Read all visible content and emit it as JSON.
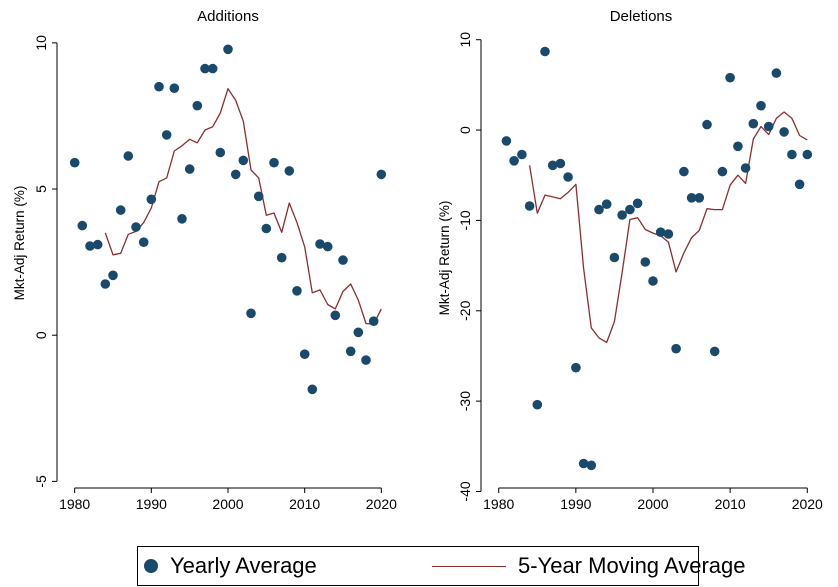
{
  "colors": {
    "dot": "#1a4a6b",
    "line": "#8B2E2E",
    "axis": "#000000"
  },
  "legend": {
    "dot_label": "Yearly Average",
    "line_label": "5-Year Moving Average"
  },
  "chart_data": [
    {
      "type": "scatter",
      "title": "Additions",
      "xlabel": "",
      "ylabel": "Mkt-Adj Return (%)",
      "xlim": [
        1979,
        2021
      ],
      "ylim": [
        -5.5,
        10.2
      ],
      "xticks": [
        1980,
        1990,
        2000,
        2010,
        2020
      ],
      "yticks": [
        -5,
        0,
        5,
        10
      ],
      "grid": false,
      "series": [
        {
          "name": "Yearly Average",
          "kind": "scatter",
          "x": [
            1980,
            1981,
            1982,
            1983,
            1984,
            1985,
            1986,
            1987,
            1988,
            1989,
            1990,
            1991,
            1992,
            1993,
            1994,
            1995,
            1996,
            1997,
            1998,
            1999,
            2000,
            2001,
            2002,
            2003,
            2004,
            2005,
            2006,
            2007,
            2008,
            2009,
            2010,
            2011,
            2012,
            2013,
            2014,
            2015,
            2016,
            2017,
            2018,
            2019,
            2020
          ],
          "y": [
            5.9,
            3.75,
            3.05,
            3.1,
            1.75,
            2.05,
            4.28,
            6.13,
            3.7,
            3.18,
            4.65,
            8.5,
            6.85,
            8.45,
            3.98,
            5.68,
            7.85,
            9.12,
            9.12,
            6.25,
            9.78,
            5.5,
            5.98,
            0.75,
            4.75,
            3.65,
            5.9,
            2.65,
            5.62,
            1.52,
            -0.65,
            -1.85,
            3.12,
            3.03,
            0.68,
            2.57,
            -0.55,
            0.1,
            -0.85,
            0.48,
            5.5
          ]
        },
        {
          "name": "5-Year Moving Average",
          "kind": "line",
          "x": [
            1984,
            1985,
            1986,
            1987,
            1988,
            1989,
            1990,
            1991,
            1992,
            1993,
            1994,
            1995,
            1996,
            1997,
            1998,
            1999,
            2000,
            2001,
            2002,
            2003,
            2004,
            2005,
            2006,
            2007,
            2008,
            2009,
            2010,
            2011,
            2012,
            2013,
            2014,
            2015,
            2016,
            2017,
            2018,
            2019,
            2020
          ],
          "y": [
            3.5,
            2.75,
            2.8,
            3.45,
            3.55,
            3.85,
            4.35,
            5.25,
            5.38,
            6.3,
            6.48,
            6.7,
            6.58,
            7.02,
            7.13,
            7.6,
            8.43,
            8.03,
            7.32,
            5.65,
            5.38,
            4.1,
            4.18,
            3.52,
            4.52,
            3.85,
            3.02,
            1.45,
            1.55,
            1.05,
            0.9,
            1.5,
            1.75,
            1.2,
            0.4,
            0.38,
            0.9
          ]
        }
      ]
    },
    {
      "type": "scatter",
      "title": "Deletions",
      "xlabel": "",
      "ylabel": "Mkt-Adj Return (%)",
      "xlim": [
        1979,
        2021
      ],
      "ylim": [
        -40.5,
        10.3
      ],
      "xticks": [
        1980,
        1990,
        2000,
        2010,
        2020
      ],
      "yticks": [
        -40,
        -30,
        -20,
        -10,
        0,
        10
      ],
      "grid": false,
      "series": [
        {
          "name": "Yearly Average",
          "kind": "scatter",
          "x": [
            1981,
            1982,
            1983,
            1984,
            1985,
            1986,
            1987,
            1988,
            1989,
            1990,
            1991,
            1992,
            1993,
            1994,
            1995,
            1996,
            1997,
            1998,
            1999,
            2000,
            2001,
            2002,
            2003,
            2004,
            2005,
            2006,
            2007,
            2008,
            2009,
            2010,
            2011,
            2012,
            2013,
            2014,
            2015,
            2016,
            2017,
            2018,
            2019,
            2020
          ],
          "y": [
            -1.2,
            -3.4,
            -2.7,
            -8.4,
            -30.4,
            8.7,
            -3.9,
            -3.7,
            -5.2,
            -26.3,
            -36.9,
            -37.1,
            -8.8,
            -8.2,
            -14.1,
            -9.4,
            -8.8,
            -8.1,
            -14.6,
            -16.7,
            -11.3,
            -11.5,
            -24.2,
            -4.6,
            -7.5,
            -7.5,
            0.6,
            -24.5,
            -4.6,
            5.8,
            -1.8,
            -4.2,
            0.7,
            2.7,
            0.4,
            6.3,
            -0.2,
            -2.7,
            -6.0,
            -2.7
          ]
        },
        {
          "name": "5-Year Moving Average",
          "kind": "line",
          "x": [
            1984,
            1985,
            1986,
            1987,
            1988,
            1989,
            1990,
            1991,
            1992,
            1993,
            1994,
            1995,
            1996,
            1997,
            1998,
            1999,
            2000,
            2001,
            2002,
            2003,
            2004,
            2005,
            2006,
            2007,
            2008,
            2009,
            2010,
            2011,
            2012,
            2013,
            2014,
            2015,
            2016,
            2017,
            2018,
            2019,
            2020
          ],
          "y": [
            -3.9,
            -9.2,
            -7.2,
            -7.4,
            -7.6,
            -6.9,
            -6.0,
            -15.3,
            -21.9,
            -23.0,
            -23.5,
            -21.2,
            -15.8,
            -9.9,
            -9.7,
            -11.0,
            -11.4,
            -11.7,
            -12.4,
            -15.7,
            -13.6,
            -11.9,
            -11.1,
            -8.7,
            -8.8,
            -8.8,
            -6.1,
            -5.0,
            -5.9,
            -1.0,
            0.4,
            -0.5,
            1.3,
            2.0,
            1.3,
            -0.6,
            -1.1
          ]
        }
      ]
    }
  ]
}
